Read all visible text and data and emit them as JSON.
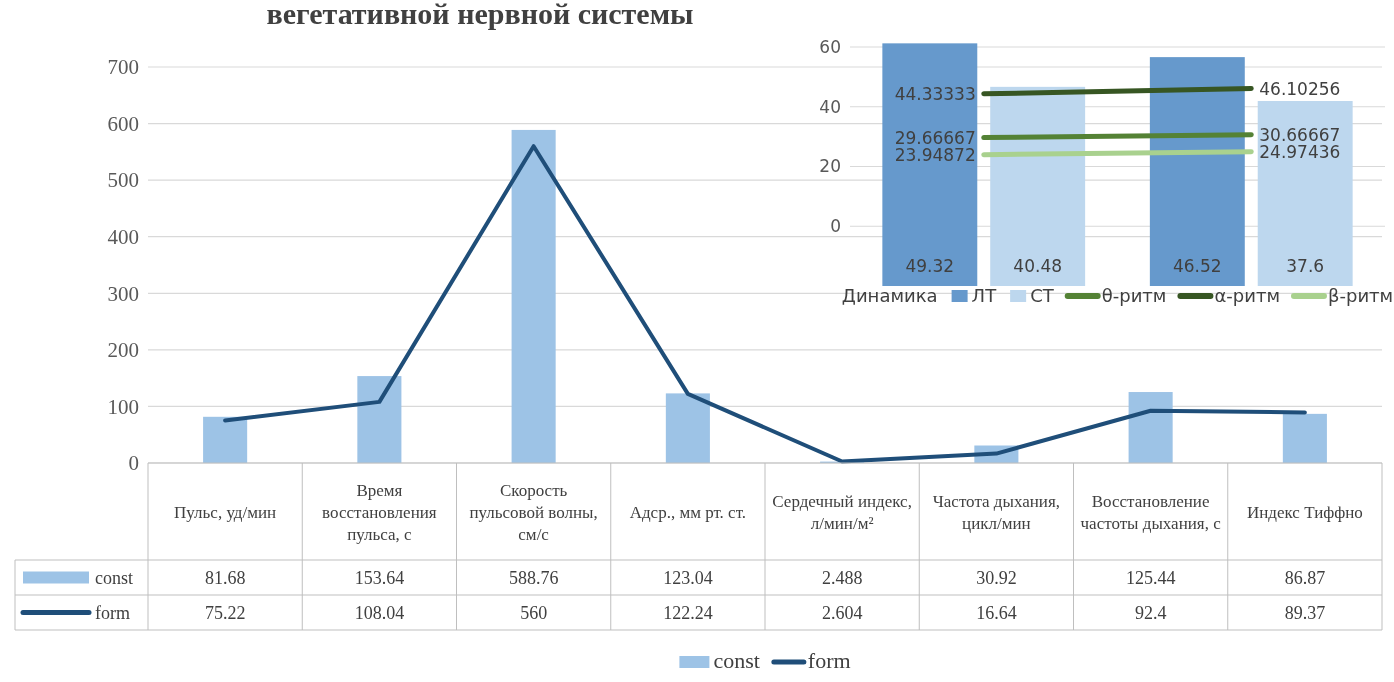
{
  "chart_data": [
    {
      "type": "bar",
      "title": "вегетативной нервной системы",
      "categories": [
        "Пульс, уд/мин",
        "Время восстановления пульса, с",
        "Скорость пульсовой волны, см/с",
        "Адср., мм рт. ст.",
        "Сердечный индекс, л/мин/м²",
        "Частота дыхания, цикл/мин",
        "Восстановление частоты дыхания, с",
        "Индекс Тиффно"
      ],
      "series": [
        {
          "name": "const",
          "color": "#9dc3e6",
          "values": [
            81.68,
            153.64,
            588.76,
            123.04,
            2.488,
            30.92,
            125.44,
            86.87
          ]
        },
        {
          "name": "form",
          "type": "line",
          "color": "#1f4e79",
          "values": [
            75.22,
            108.04,
            560,
            122.24,
            2.604,
            16.64,
            92.4,
            89.37
          ]
        }
      ],
      "ylim": [
        0,
        700
      ],
      "yticks": [
        0,
        100,
        200,
        300,
        400,
        500,
        600,
        700
      ],
      "grid": "y",
      "data_labels": true,
      "legend": "bottom"
    },
    {
      "type": "bar",
      "categories": [
        null,
        null
      ],
      "legend_title": "Динамика",
      "series": [
        {
          "name": "ЛТ",
          "axis": "y2",
          "color": "#6699cc",
          "values": [
            49.32,
            46.52
          ]
        },
        {
          "name": "СТ",
          "axis": "y2",
          "color": "#bdd7ee",
          "values": [
            40.48,
            37.6
          ]
        },
        {
          "name": "θ-ритм",
          "type": "line",
          "color": "#548235",
          "values": [
            29.66667,
            30.66667
          ]
        },
        {
          "name": "α-ритм",
          "type": "line",
          "color": "#375623",
          "values": [
            44.33333,
            46.10256
          ]
        },
        {
          "name": "β-ритм",
          "type": "line",
          "color": "#a9d18e",
          "values": [
            23.94872,
            24.97436
          ]
        }
      ],
      "ylim": [
        -20,
        60
      ],
      "yticks": [
        0,
        20,
        40,
        60
      ],
      "y2lim": [
        0,
        50
      ],
      "grid": "y",
      "tick_labels": "y",
      "data_labels": true,
      "legend": "bottom"
    }
  ]
}
